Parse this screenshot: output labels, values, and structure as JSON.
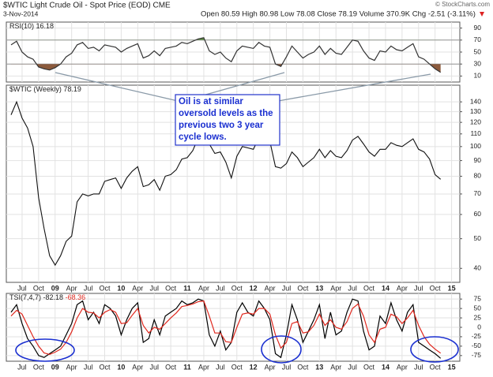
{
  "header": {
    "title": "$WTIC Light Crude Oil - Spot Price (EOD) CME",
    "date": "3-Nov-2014",
    "quote": "Open 80.59 High 80.98 Low 78.08 Close 78.19 Volume 370.9K Chg -2.51 (-3.11%)",
    "credit": "© StockCharts.com"
  },
  "annotation": "Oil is at similar oversold levels as the previous two 3 year cycle lows.",
  "chart_data": [
    {
      "type": "line",
      "label": "RSI(10)",
      "ylim": [
        0,
        100
      ],
      "yticks": [
        10,
        30,
        50,
        70,
        90
      ],
      "thresholds": [
        30,
        70
      ],
      "grid": true,
      "series": [
        {
          "name": "RSI(10)",
          "color": "#333333",
          "values": [
            62,
            68,
            50,
            42,
            38,
            25,
            22,
            20,
            24,
            30,
            42,
            48,
            62,
            66,
            56,
            58,
            52,
            62,
            60,
            58,
            50,
            56,
            60,
            64,
            40,
            44,
            52,
            44,
            56,
            58,
            60,
            66,
            64,
            68,
            72,
            74,
            52,
            46,
            50,
            40,
            34,
            52,
            60,
            58,
            56,
            66,
            60,
            58,
            30,
            26,
            42,
            60,
            50,
            40,
            46,
            50,
            60,
            46,
            56,
            48,
            46,
            58,
            70,
            68,
            52,
            40,
            36,
            52,
            50,
            60,
            54,
            52,
            58,
            64,
            42,
            38,
            30,
            22,
            16.18,
            null,
            null
          ]
        }
      ]
    },
    {
      "type": "line",
      "label": "$WTIC (Weekly)",
      "log": true,
      "ylim": [
        36,
        155
      ],
      "yticks": [
        40,
        50,
        60,
        70,
        80,
        90,
        100,
        110,
        120,
        130,
        140
      ],
      "grid": true,
      "categories": [
        null,
        null,
        "Jul",
        null,
        null,
        "Oct",
        null,
        null,
        "09",
        null,
        null,
        "Apr",
        null,
        null,
        "Jul",
        null,
        null,
        "Oct",
        null,
        null,
        "10",
        null,
        null,
        "Apr",
        null,
        null,
        "Jul",
        null,
        null,
        "Oct",
        null,
        null,
        "11",
        null,
        null,
        "Apr",
        null,
        null,
        "Jul",
        null,
        null,
        "Oct",
        null,
        null,
        "12",
        null,
        null,
        "Apr",
        null,
        null,
        "Jul",
        null,
        null,
        "Oct",
        null,
        null,
        "13",
        null,
        null,
        "Apr",
        null,
        null,
        "Jul",
        null,
        null,
        "Oct",
        null,
        null,
        "14",
        null,
        null,
        "Apr",
        null,
        null,
        "Jul",
        null,
        null,
        "Oct",
        null,
        null,
        "15"
      ],
      "series": [
        {
          "name": "$WTIC",
          "color": "#111111",
          "values": [
            127,
            140,
            124,
            115,
            100,
            68,
            54,
            44,
            41,
            44,
            49,
            51,
            66,
            70,
            69,
            70,
            70,
            77,
            78,
            79,
            73,
            79,
            83,
            86,
            74,
            75,
            78,
            72,
            80,
            81,
            84,
            91,
            92,
            97,
            107,
            113,
            102,
            95,
            96,
            89,
            79,
            93,
            100,
            99,
            98,
            107,
            103,
            104,
            86,
            85,
            88,
            96,
            92,
            86,
            89,
            92,
            98,
            92,
            97,
            93,
            92,
            97,
            105,
            108,
            102,
            96,
            93,
            98,
            98,
            103,
            101,
            100,
            103,
            106,
            98,
            96,
            91,
            81,
            78.19,
            null,
            null
          ]
        }
      ]
    },
    {
      "type": "line",
      "label": "TSI(7,4,7)",
      "ylim": [
        -90,
        90
      ],
      "yticks": [
        -75,
        -50,
        -25,
        0,
        25,
        50,
        75
      ],
      "grid": true,
      "categories": [
        null,
        null,
        "Jul",
        null,
        null,
        "Oct",
        null,
        null,
        "09",
        null,
        null,
        "Apr",
        null,
        null,
        "Jul",
        null,
        null,
        "Oct",
        null,
        null,
        "10",
        null,
        null,
        "Apr",
        null,
        null,
        "Jul",
        null,
        null,
        "Oct",
        null,
        null,
        "11",
        null,
        null,
        "Apr",
        null,
        null,
        "Jul",
        null,
        null,
        "Oct",
        null,
        null,
        "12",
        null,
        null,
        "Apr",
        null,
        null,
        "Jul",
        null,
        null,
        "Oct",
        null,
        null,
        "13",
        null,
        null,
        "Apr",
        null,
        null,
        "Jul",
        null,
        null,
        "Oct",
        null,
        null,
        "14",
        null,
        null,
        "Apr",
        null,
        null,
        "Jul",
        null,
        null,
        "Oct",
        null,
        null,
        "15"
      ],
      "series": [
        {
          "name": "TSI",
          "color": "#000000",
          "values": [
            40,
            60,
            10,
            -30,
            -50,
            -75,
            -80,
            -70,
            -60,
            -50,
            -20,
            10,
            60,
            70,
            20,
            40,
            10,
            60,
            50,
            30,
            -20,
            20,
            50,
            65,
            -40,
            -30,
            20,
            -20,
            30,
            40,
            50,
            70,
            60,
            65,
            75,
            70,
            -20,
            -50,
            -10,
            -60,
            -40,
            40,
            65,
            40,
            30,
            70,
            50,
            20,
            -70,
            -80,
            -20,
            60,
            20,
            -40,
            -10,
            20,
            60,
            -30,
            40,
            -20,
            -10,
            40,
            75,
            70,
            -10,
            -60,
            -50,
            30,
            10,
            65,
            20,
            -10,
            40,
            60,
            -40,
            -50,
            -60,
            -70,
            -82.18,
            null,
            null
          ]
        },
        {
          "name": "Signal",
          "color": "#e0281e",
          "values": [
            30,
            45,
            35,
            5,
            -25,
            -50,
            -68,
            -72,
            -66,
            -58,
            -40,
            -12,
            25,
            50,
            40,
            38,
            25,
            40,
            47,
            40,
            10,
            12,
            32,
            50,
            5,
            -15,
            0,
            -5,
            10,
            25,
            38,
            55,
            58,
            62,
            68,
            70,
            30,
            -15,
            -15,
            -38,
            -40,
            0,
            35,
            38,
            35,
            50,
            50,
            35,
            -20,
            -55,
            -40,
            10,
            15,
            -15,
            -12,
            5,
            35,
            5,
            20,
            0,
            -5,
            15,
            50,
            62,
            30,
            -20,
            -40,
            -5,
            0,
            35,
            28,
            10,
            25,
            45,
            5,
            -25,
            -45,
            -58,
            -68.36,
            null,
            null
          ]
        }
      ]
    }
  ]
}
